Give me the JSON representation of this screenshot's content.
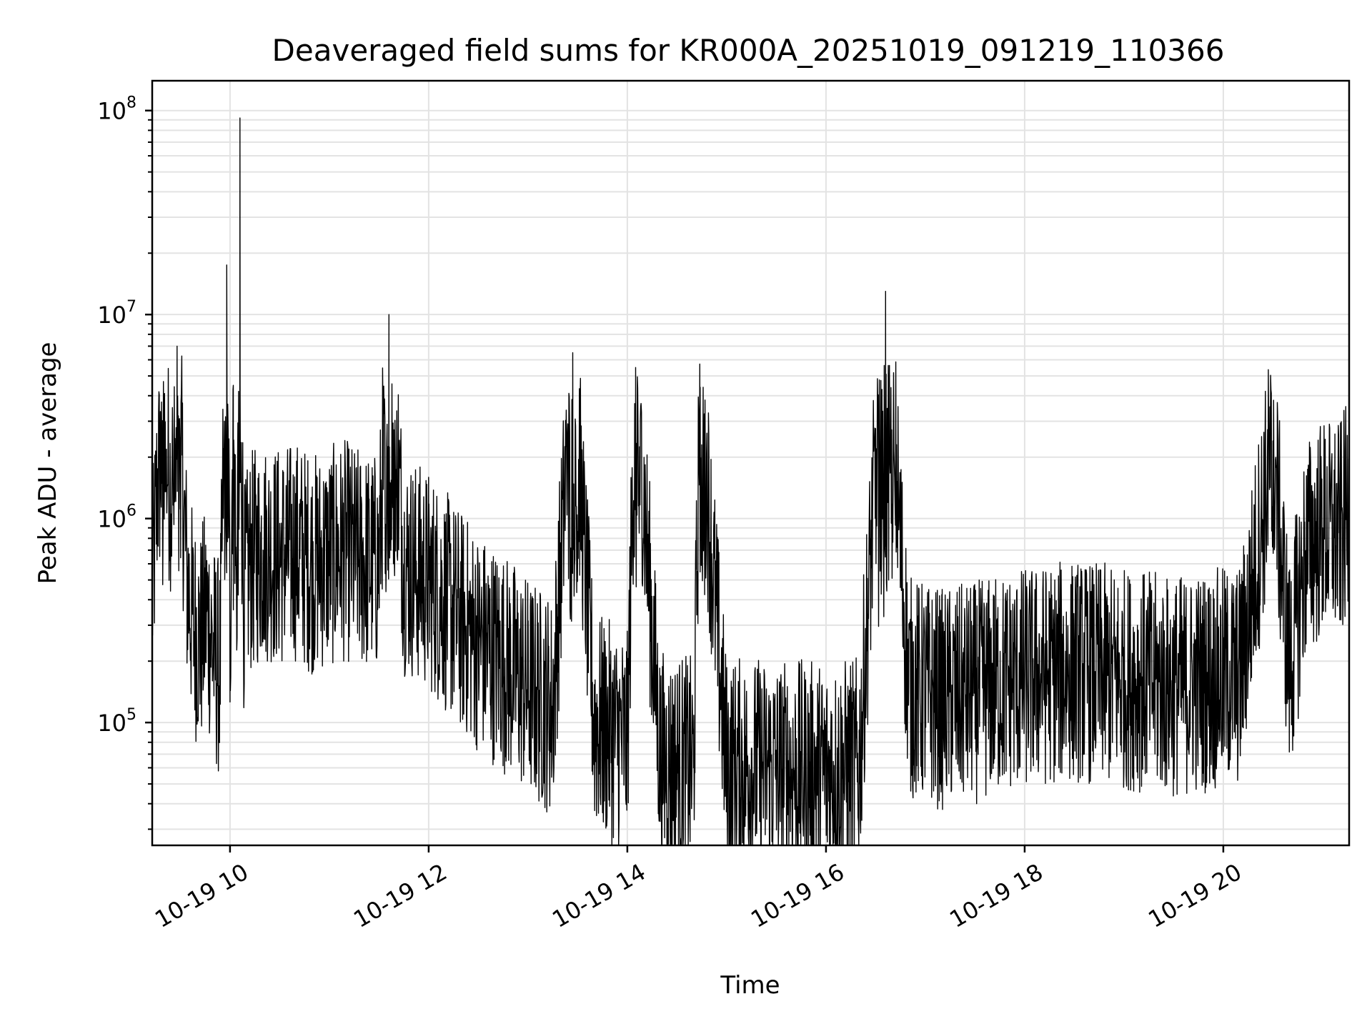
{
  "chart_data": {
    "type": "line",
    "title": "Deaveraged field sums for KR000A_20251019_091219_110366",
    "xlabel": "Time",
    "ylabel": "Peak ADU - average",
    "yscale": "log",
    "ylim": [
      25000,
      140000000
    ],
    "xlim": [
      "2025-10-19 09:13",
      "2025-10-19 21:16"
    ],
    "grid": true,
    "line_color": "#000000",
    "x_ticks": [
      {
        "value": "2025-10-19 10:00",
        "label": "10-19 10"
      },
      {
        "value": "2025-10-19 12:00",
        "label": "10-19 12"
      },
      {
        "value": "2025-10-19 14:00",
        "label": "10-19 14"
      },
      {
        "value": "2025-10-19 16:00",
        "label": "10-19 16"
      },
      {
        "value": "2025-10-19 18:00",
        "label": "10-19 18"
      },
      {
        "value": "2025-10-19 20:00",
        "label": "10-19 20"
      }
    ],
    "y_ticks": [
      {
        "value": 100000,
        "base": "10",
        "exp": "5"
      },
      {
        "value": 1000000,
        "base": "10",
        "exp": "6"
      },
      {
        "value": 10000000,
        "base": "10",
        "exp": "7"
      },
      {
        "value": 100000000,
        "base": "10",
        "exp": "8"
      }
    ],
    "series": [
      {
        "x": [
          "2025-10-19 09:13",
          "2025-10-19 09:16",
          "2025-10-19 09:20",
          "2025-10-19 09:24",
          "2025-10-19 09:28",
          "2025-10-19 09:30",
          "2025-10-19 09:34",
          "2025-10-19 09:38",
          "2025-10-19 09:42",
          "2025-10-19 09:46",
          "2025-10-19 09:50",
          "2025-10-19 09:54",
          "2025-10-19 09:58",
          "2025-10-19 10:00",
          "2025-10-19 10:02",
          "2025-10-19 10:04",
          "2025-10-19 10:06",
          "2025-10-19 10:08",
          "2025-10-19 10:12",
          "2025-10-19 10:20",
          "2025-10-19 10:30",
          "2025-10-19 10:40",
          "2025-10-19 10:50",
          "2025-10-19 11:00",
          "2025-10-19 11:10",
          "2025-10-19 11:20",
          "2025-10-19 11:30",
          "2025-10-19 11:36",
          "2025-10-19 11:45",
          "2025-10-19 12:00",
          "2025-10-19 12:15",
          "2025-10-19 12:30",
          "2025-10-19 12:45",
          "2025-10-19 13:00",
          "2025-10-19 13:15",
          "2025-10-19 13:27",
          "2025-10-19 13:40",
          "2025-10-19 14:00",
          "2025-10-19 14:05",
          "2025-10-19 14:20",
          "2025-10-19 14:40",
          "2025-10-19 14:44",
          "2025-10-19 15:00",
          "2025-10-19 15:20",
          "2025-10-19 15:40",
          "2025-10-19 16:00",
          "2025-10-19 16:20",
          "2025-10-19 16:36",
          "2025-10-19 16:50",
          "2025-10-19 17:10",
          "2025-10-19 17:30",
          "2025-10-19 17:50",
          "2025-10-19 18:10",
          "2025-10-19 18:30",
          "2025-10-19 18:50",
          "2025-10-19 19:10",
          "2025-10-19 19:30",
          "2025-10-19 19:50",
          "2025-10-19 20:10",
          "2025-10-19 20:30",
          "2025-10-19 20:40",
          "2025-10-19 20:50",
          "2025-10-19 21:00",
          "2025-10-19 21:10",
          "2025-10-19 21:16"
        ],
        "y": [
          400000,
          1400000,
          2500000,
          1500000,
          7000000,
          2500000,
          500000,
          300000,
          250000,
          350000,
          220000,
          180000,
          17500000,
          250000,
          4500000,
          300000,
          92000000,
          400000,
          600000,
          700000,
          650000,
          700000,
          600000,
          650000,
          700000,
          620000,
          600000,
          10000000,
          600000,
          500000,
          350000,
          250000,
          200000,
          150000,
          120000,
          6500000,
          100000,
          80000,
          5500000,
          65000,
          60000,
          4400000,
          60000,
          60000,
          58000,
          57000,
          60000,
          13000000,
          150000,
          130000,
          140000,
          160000,
          170000,
          180000,
          170000,
          160000,
          150000,
          160000,
          170000,
          2400000,
          180000,
          700000,
          900000,
          850000,
          1100000
        ]
      }
    ]
  }
}
